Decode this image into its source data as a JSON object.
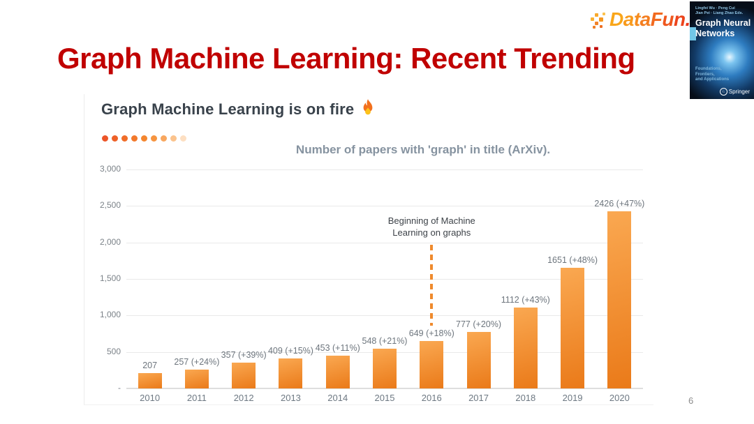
{
  "slide": {
    "title": "Graph Machine Learning: Recent Trending",
    "title_color": "#c00000",
    "page_number": "6"
  },
  "logo": {
    "text": "DataFun.",
    "letter_colors": [
      "#F9A61A",
      "#F89A1C",
      "#F68C1E",
      "#F47E20",
      "#F26A1F",
      "#EF571E",
      "#EC441C",
      "#E93318"
    ],
    "icon": "datafun-mosaic-icon",
    "mosaic_colors": [
      "#f8b133",
      "#f8a92c",
      "#f1832a",
      "#f6971f",
      "#ef7f25",
      "#ee6e22",
      "#fbc14d"
    ]
  },
  "book": {
    "authors_line1": "Lingfei Wu · Peng Cui",
    "authors_line2": "Jian Pei · Liang Zhao  Eds.",
    "title_line1": "Graph Neural",
    "title_line2": "Networks",
    "subtitle_lines": [
      "Foundations,",
      "Frontiers,",
      "and Applications"
    ],
    "publisher": "Springer",
    "publisher_icon": "springer-horse-icon",
    "accent_color": "#72c7e7"
  },
  "content": {
    "heading": "Graph Machine Learning is on fire",
    "fire_icon": "fire-icon",
    "dot_colors": [
      "#ec5528",
      "#ee6128",
      "#f06d29",
      "#f2792c",
      "#f4862f",
      "#f69440",
      "#f8a75f",
      "#fbc38d",
      "#fddfc2"
    ]
  },
  "chart_data": {
    "type": "bar",
    "title": "Number of papers with 'graph' in title (ArXiv).",
    "categories": [
      "2010",
      "2011",
      "2012",
      "2013",
      "2014",
      "2015",
      "2016",
      "2017",
      "2018",
      "2019",
      "2020"
    ],
    "values": [
      207,
      257,
      357,
      409,
      453,
      548,
      649,
      777,
      1112,
      1651,
      2426
    ],
    "bar_labels": [
      "207",
      "257 (+24%)",
      "357 (+39%)",
      "409 (+15%)",
      "453 (+11%)",
      "548 (+21%)",
      "649 (+18%)",
      "777 (+20%)",
      "1112 (+43%)",
      "1651 (+48%)",
      "2426 (+47%)"
    ],
    "xlabel": "",
    "ylabel": "",
    "ylim": [
      0,
      3000
    ],
    "grid": true,
    "legend": "none",
    "y_ticks": [
      "3,000",
      "2,500",
      "2,000",
      "1,500",
      "1,000",
      "500",
      "-"
    ],
    "y_tick_values": [
      3000,
      2500,
      2000,
      1500,
      1000,
      500,
      0
    ],
    "bar_color_top": "#faa851",
    "bar_color_bottom": "#ea7a19",
    "annotation": {
      "text_lines": [
        "Beginning of Machine",
        "Learning on graphs"
      ],
      "x_category": "2016",
      "line_style": "dashed",
      "line_color": "#ef8a2d"
    }
  }
}
